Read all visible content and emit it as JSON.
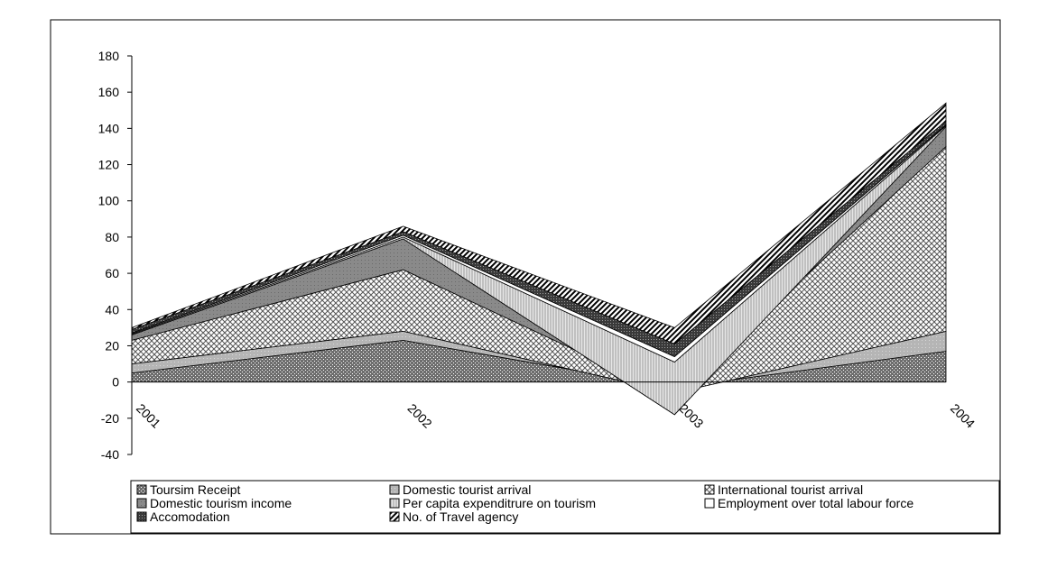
{
  "chart_data": {
    "type": "area",
    "stacked": true,
    "categories": [
      "2001",
      "2002",
      "2003",
      "2004"
    ],
    "ylim": [
      -40,
      180
    ],
    "yticks": [
      -40,
      -20,
      0,
      20,
      40,
      60,
      80,
      100,
      120,
      140,
      160,
      180
    ],
    "series": [
      {
        "name": "Toursim Receipt",
        "values": [
          5,
          23,
          -3,
          17
        ],
        "pattern": "dots-dense"
      },
      {
        "name": "Domestic tourist arrival",
        "values": [
          5,
          5,
          -3,
          11
        ],
        "pattern": "light-gray"
      },
      {
        "name": "International tourist arrival",
        "values": [
          13,
          34,
          -2,
          102
        ],
        "pattern": "crosshatch"
      },
      {
        "name": "Domestic tourism income",
        "values": [
          3,
          17,
          -10,
          11
        ],
        "pattern": "dark-gray"
      },
      {
        "name": "Per capita expenditrure on tourism",
        "values": [
          0.5,
          1,
          29,
          0.5
        ],
        "pattern": "vertical-lines"
      },
      {
        "name": "Employment over total labour force",
        "values": [
          0.5,
          1,
          3,
          0.5
        ],
        "pattern": "white"
      },
      {
        "name": "Accomodation",
        "values": [
          2,
          2,
          7,
          2
        ],
        "pattern": "dark-dots"
      },
      {
        "name": "No. of Travel agency",
        "values": [
          1,
          3,
          9,
          10
        ],
        "pattern": "diagonal"
      }
    ]
  },
  "legend": {
    "items": [
      "Toursim Receipt",
      "Domestic tourist arrival",
      "International tourist arrival",
      "Domestic tourism income",
      "Per capita expenditrure on tourism",
      "Employment over total labour force",
      "Accomodation",
      "No. of Travel agency"
    ]
  }
}
